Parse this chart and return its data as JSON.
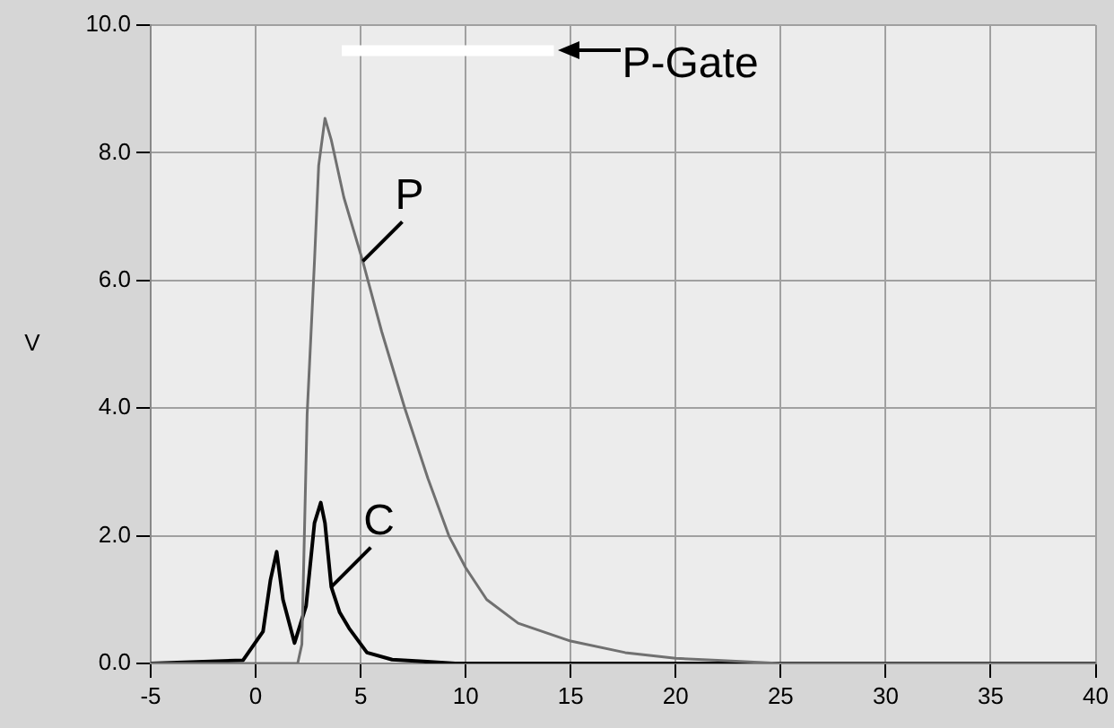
{
  "chart_data": {
    "type": "line",
    "ylabel": "V",
    "series": [
      {
        "color": "#707070",
        "x": [
          -5,
          2.0,
          2.2,
          2.45,
          2.8,
          3.0,
          3.3,
          3.6,
          4.2,
          5.1,
          6.0,
          7.1,
          8.2,
          9.2,
          10,
          11,
          12.5,
          15,
          17.6,
          20,
          22,
          25,
          40
        ],
        "values": [
          0,
          0,
          0.3,
          3.9,
          6.3,
          7.8,
          8.54,
          8.2,
          7.3,
          6.3,
          5.2,
          4.0,
          2.9,
          2.0,
          1.5,
          1.0,
          0.63,
          0.35,
          0.17,
          0.08,
          0.05,
          0,
          0
        ]
      },
      {
        "color": "#000000",
        "x": [
          -5,
          -0.6,
          0.35,
          0.7,
          1.0,
          1.3,
          1.85,
          2.4,
          2.8,
          3.1,
          3.3,
          3.6,
          4.0,
          4.45,
          5.3,
          6.5,
          8,
          9.5,
          40
        ],
        "values": [
          0,
          0.05,
          0.5,
          1.3,
          1.75,
          1.0,
          0.32,
          0.9,
          2.2,
          2.52,
          2.2,
          1.2,
          0.8,
          0.55,
          0.17,
          0.06,
          0.03,
          0,
          0
        ]
      },
      {
        "color": "#ffffff",
        "x": [
          4.1,
          14.2
        ],
        "values": [
          9.6,
          9.6
        ]
      }
    ],
    "annotations": [
      {
        "text": "P",
        "x": 5.1,
        "y": 6.3
      },
      {
        "text": "C",
        "x": 3.6,
        "y": 1.2
      },
      {
        "text": "P-Gate",
        "x": 14.2,
        "y": 9.6
      }
    ],
    "xlim": [
      -5,
      40
    ],
    "xticks": [
      -5,
      0,
      5,
      10,
      15,
      20,
      25,
      30,
      35,
      40
    ],
    "ylim": [
      0,
      10
    ],
    "yticks": [
      {
        "value": 0,
        "label": "0.0"
      },
      {
        "value": 2,
        "label": "2.0"
      },
      {
        "value": 4,
        "label": "4.0"
      },
      {
        "value": 6,
        "label": "6.0"
      },
      {
        "value": 8,
        "label": "8.0"
      },
      {
        "value": 10,
        "label": "10.0"
      }
    ],
    "grid": true,
    "marker": "none",
    "line_style": "solid"
  }
}
